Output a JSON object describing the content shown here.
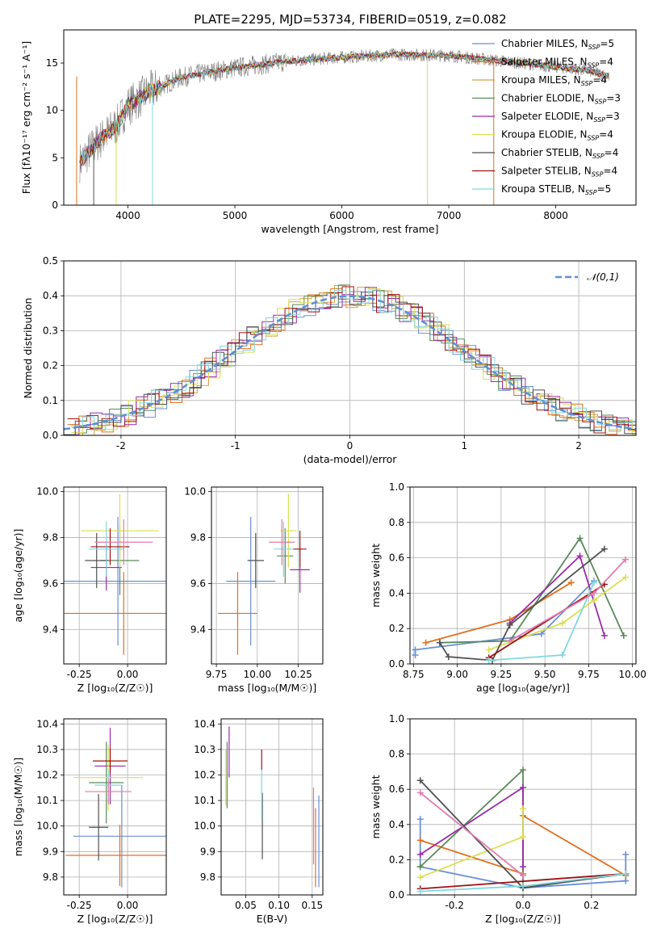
{
  "figure_title": "PLATE=2295, MJD=53734, FIBERID=0519, z=0.082",
  "colors": {
    "Chabrier MILES": "#6a8fd8",
    "Salpeter MILES": "#e07020",
    "Kroupa MILES": "#d8a040",
    "Chabrier ELODIE": "#5a8a5a",
    "Salpeter ELODIE": "#9a2aaa",
    "Kroupa ELODIE": "#d8e050",
    "Chabrier STELIB": "#505050",
    "Salpeter STELIB": "#a01010",
    "Kroupa STELIB": "#80d8e0",
    "pink": "#e07ab0",
    "gauss": "#5b8fd9"
  },
  "legend_spectrum": [
    {
      "label": "Chabrier MILES, N",
      "sub": "SSP",
      "val": "=5",
      "color": "#6a8fd8"
    },
    {
      "label": "Salpeter MILES, N",
      "sub": "SSP",
      "val": "=4",
      "color": "#e07020"
    },
    {
      "label": "Kroupa MILES, N",
      "sub": "SSP",
      "val": "=4",
      "color": "#d8a040"
    },
    {
      "label": "Chabrier ELODIE, N",
      "sub": "SSP",
      "val": "=3",
      "color": "#5a8a5a"
    },
    {
      "label": "Salpeter ELODIE, N",
      "sub": "SSP",
      "val": "=3",
      "color": "#9a2aaa"
    },
    {
      "label": "Kroupa ELODIE, N",
      "sub": "SSP",
      "val": "=4",
      "color": "#d8e050"
    },
    {
      "label": "Chabrier STELIB, N",
      "sub": "SSP",
      "val": "=4",
      "color": "#505050"
    },
    {
      "label": "Salpeter STELIB, N",
      "sub": "SSP",
      "val": "=4",
      "color": "#a01010"
    },
    {
      "label": "Kroupa STELIB, N",
      "sub": "SSP",
      "val": "=5",
      "color": "#80d8e0"
    }
  ],
  "chart_data": [
    {
      "id": "spectrum",
      "type": "line",
      "xlabel": "wavelength [Angstrom, rest frame]",
      "ylabel": "Flux [f",
      "ylabel_full": "Flux [fλ10⁻¹⁷ erg cm⁻² s⁻¹ A⁻¹]",
      "xlim": [
        3400,
        8750
      ],
      "ylim": [
        0,
        18.5
      ],
      "xticks": [
        4000,
        5000,
        6000,
        7000,
        8000
      ],
      "yticks": [
        0,
        5,
        10,
        15
      ],
      "continuum": [
        [
          3550,
          4.5
        ],
        [
          3700,
          6.5
        ],
        [
          3900,
          8.5
        ],
        [
          4000,
          10.5
        ],
        [
          4200,
          12
        ],
        [
          4500,
          13.5
        ],
        [
          5000,
          14.5
        ],
        [
          5500,
          15.2
        ],
        [
          6000,
          15.6
        ],
        [
          6500,
          15.9
        ],
        [
          7000,
          15.8
        ],
        [
          7500,
          15.2
        ],
        [
          8000,
          14.6
        ],
        [
          8300,
          14.2
        ],
        [
          8500,
          13.6
        ]
      ],
      "x_range": [
        3550,
        8500
      ]
    },
    {
      "id": "residuals",
      "type": "area",
      "xlabel": "(data-model)/error",
      "ylabel": "Normed distribution",
      "xlim": [
        -2.5,
        2.5
      ],
      "ylim": [
        0,
        0.5
      ],
      "xticks": [
        -2,
        -1,
        0,
        1,
        2
      ],
      "yticks": [
        0.0,
        0.1,
        0.2,
        0.3,
        0.4,
        0.5
      ],
      "legend": "𝒩(0,1)",
      "bin_width": 0.1
    },
    {
      "id": "age_vs_Z",
      "type": "scatter",
      "xlabel": "Z [log₁₀(Z/Z☉)]",
      "ylabel": "age  [log₁₀(age/yr)]",
      "xlim": [
        -0.33,
        0.2
      ],
      "ylim": [
        9.25,
        10.02
      ],
      "xticks": [
        -0.25,
        0.0
      ],
      "yticks": [
        9.4,
        9.6,
        9.8,
        10.0
      ],
      "points": [
        {
          "x": -0.05,
          "y": 9.61,
          "xerr": 0.28,
          "yerr": 0.28,
          "color": "#6a8fd8"
        },
        {
          "x": -0.02,
          "y": 9.47,
          "xerr": 0.32,
          "yerr": 0.18,
          "color": "#e07020"
        },
        {
          "x": -0.04,
          "y": 9.7,
          "xerr": 0.1,
          "yerr": 0.15,
          "color": "#5a8a5a"
        },
        {
          "x": -0.11,
          "y": 9.67,
          "xerr": 0.08,
          "yerr": 0.1,
          "color": "#9a2aaa"
        },
        {
          "x": -0.04,
          "y": 9.83,
          "xerr": 0.2,
          "yerr": 0.16,
          "color": "#d8e050"
        },
        {
          "x": -0.16,
          "y": 9.7,
          "xerr": 0.06,
          "yerr": 0.12,
          "color": "#505050"
        },
        {
          "x": -0.09,
          "y": 9.76,
          "xerr": 0.1,
          "yerr": 0.08,
          "color": "#a01010"
        },
        {
          "x": -0.11,
          "y": 9.75,
          "xerr": 0.09,
          "yerr": 0.12,
          "color": "#80d8e0"
        },
        {
          "x": -0.02,
          "y": 9.78,
          "xerr": 0.15,
          "yerr": 0.1,
          "color": "#e07ab0"
        }
      ]
    },
    {
      "id": "age_vs_mass",
      "type": "scatter",
      "xlabel": "mass [log₁₀(M/M☉)]",
      "ylabel": "",
      "xlim": [
        9.72,
        10.4
      ],
      "ylim": [
        9.25,
        10.02
      ],
      "xticks": [
        9.75,
        10.0,
        10.25
      ],
      "yticks": [
        9.4,
        9.6,
        9.8,
        10.0
      ],
      "points": [
        {
          "x": 9.96,
          "y": 9.61,
          "xerr": 0.15,
          "yerr": 0.28,
          "color": "#6a8fd8"
        },
        {
          "x": 9.88,
          "y": 9.47,
          "xerr": 0.12,
          "yerr": 0.18,
          "color": "#e07020"
        },
        {
          "x": 10.17,
          "y": 9.72,
          "xerr": 0.05,
          "yerr": 0.12,
          "color": "#5a8a5a"
        },
        {
          "x": 10.26,
          "y": 9.66,
          "xerr": 0.06,
          "yerr": 0.1,
          "color": "#9a2aaa"
        },
        {
          "x": 10.19,
          "y": 9.83,
          "xerr": 0.05,
          "yerr": 0.16,
          "color": "#d8e050"
        },
        {
          "x": 9.99,
          "y": 9.7,
          "xerr": 0.05,
          "yerr": 0.12,
          "color": "#505050"
        },
        {
          "x": 10.26,
          "y": 9.75,
          "xerr": 0.04,
          "yerr": 0.08,
          "color": "#a01010"
        },
        {
          "x": 10.16,
          "y": 9.75,
          "xerr": 0.06,
          "yerr": 0.12,
          "color": "#80d8e0"
        },
        {
          "x": 10.15,
          "y": 9.78,
          "xerr": 0.08,
          "yerr": 0.1,
          "color": "#e07ab0"
        }
      ]
    },
    {
      "id": "mass_weight_vs_age",
      "type": "line",
      "xlabel": "age  [log₁₀(age/yr)]",
      "ylabel": "mass weight",
      "xlim": [
        8.73,
        10.02
      ],
      "ylim": [
        0,
        1.0
      ],
      "xticks": [
        8.75,
        9.0,
        9.25,
        9.5,
        9.75,
        10.0
      ],
      "yticks": [
        0.0,
        0.2,
        0.4,
        0.6,
        0.8,
        1.0
      ],
      "series": [
        {
          "color": "#6a8fd8",
          "points": [
            [
              8.76,
              0.05
            ],
            [
              8.76,
              0.08
            ],
            [
              9.48,
              0.17
            ],
            [
              9.78,
              0.47
            ]
          ]
        },
        {
          "color": "#e07020",
          "points": [
            [
              8.82,
              0.12
            ],
            [
              9.3,
              0.25
            ],
            [
              9.65,
              0.46
            ]
          ]
        },
        {
          "color": "#5a8a5a",
          "points": [
            [
              8.9,
              0.12
            ],
            [
              9.3,
              0.13
            ],
            [
              9.7,
              0.71
            ],
            [
              9.95,
              0.16
            ]
          ]
        },
        {
          "color": "#9a2aaa",
          "points": [
            [
              9.3,
              0.23
            ],
            [
              9.7,
              0.61
            ],
            [
              9.84,
              0.16
            ]
          ]
        },
        {
          "color": "#d8e050",
          "points": [
            [
              9.18,
              0.08
            ],
            [
              9.6,
              0.23
            ],
            [
              9.78,
              0.36
            ],
            [
              9.96,
              0.49
            ]
          ]
        },
        {
          "color": "#505050",
          "points": [
            [
              8.9,
              0.12
            ],
            [
              8.95,
              0.04
            ],
            [
              9.2,
              0.02
            ],
            [
              9.3,
              0.22
            ],
            [
              9.84,
              0.65
            ]
          ]
        },
        {
          "color": "#a01010",
          "points": [
            [
              9.18,
              0.035
            ],
            [
              9.84,
              0.45
            ]
          ]
        },
        {
          "color": "#80d8e0",
          "points": [
            [
              9.18,
              0.02
            ],
            [
              9.6,
              0.05
            ],
            [
              9.78,
              0.46
            ]
          ]
        },
        {
          "color": "#e07ab0",
          "points": [
            [
              9.3,
              0.13
            ],
            [
              9.78,
              0.4
            ],
            [
              9.96,
              0.59
            ]
          ]
        }
      ]
    },
    {
      "id": "mass_vs_Z",
      "type": "scatter",
      "xlabel": "Z [log₁₀(Z/Z☉)]",
      "ylabel": "mass [log₁₀(M/M☉)]",
      "xlim": [
        -0.33,
        0.2
      ],
      "ylim": [
        9.73,
        10.42
      ],
      "xticks": [
        -0.25,
        0.0
      ],
      "yticks": [
        9.8,
        9.9,
        10.0,
        10.1,
        10.2,
        10.3,
        10.4
      ],
      "points": [
        {
          "x": -0.03,
          "y": 9.96,
          "xerr": 0.25,
          "yerr": 0.2,
          "color": "#6a8fd8"
        },
        {
          "x": -0.04,
          "y": 9.885,
          "xerr": 0.28,
          "yerr": 0.12,
          "color": "#e07020"
        },
        {
          "x": -0.11,
          "y": 10.17,
          "xerr": 0.09,
          "yerr": 0.16,
          "color": "#5a8a5a"
        },
        {
          "x": -0.09,
          "y": 10.235,
          "xerr": 0.08,
          "yerr": 0.15,
          "color": "#9a2aaa"
        },
        {
          "x": -0.1,
          "y": 10.19,
          "xerr": 0.18,
          "yerr": 0.13,
          "color": "#d8e050"
        },
        {
          "x": -0.15,
          "y": 9.995,
          "xerr": 0.05,
          "yerr": 0.13,
          "color": "#505050"
        },
        {
          "x": -0.09,
          "y": 10.255,
          "xerr": 0.09,
          "yerr": 0.05,
          "color": "#a01010"
        },
        {
          "x": -0.1,
          "y": 10.16,
          "xerr": 0.07,
          "yerr": 0.06,
          "color": "#80d8e0"
        },
        {
          "x": -0.1,
          "y": 10.135,
          "xerr": 0.12,
          "yerr": 0.05,
          "color": "#e07ab0"
        }
      ]
    },
    {
      "id": "mass_vs_ebv",
      "type": "scatter",
      "xlabel": "E(B-V)",
      "ylabel": "",
      "xlim": [
        0.013,
        0.166
      ],
      "ylim": [
        9.73,
        10.42
      ],
      "xticks": [
        0.05,
        0.1,
        0.15
      ],
      "yticks": [
        9.8,
        9.9,
        10.0,
        10.1,
        10.2,
        10.3,
        10.4
      ],
      "points": [
        {
          "x": 0.16,
          "y": 9.94,
          "yerr": 0.18,
          "color": "#6a8fd8"
        },
        {
          "x": 0.155,
          "y": 9.915,
          "yerr": 0.155,
          "color": "#e07020"
        },
        {
          "x": 0.022,
          "y": 10.2,
          "yerr": 0.13,
          "color": "#5a8a5a"
        },
        {
          "x": 0.025,
          "y": 10.29,
          "yerr": 0.1,
          "color": "#9a2aaa"
        },
        {
          "x": 0.02,
          "y": 10.19,
          "yerr": 0.11,
          "color": "#d8e050"
        },
        {
          "x": 0.075,
          "y": 10.0,
          "yerr": 0.13,
          "color": "#505050"
        },
        {
          "x": 0.074,
          "y": 10.26,
          "yerr": 0.04,
          "color": "#a01010"
        },
        {
          "x": 0.074,
          "y": 10.12,
          "yerr": 0.1,
          "color": "#80d8e0"
        },
        {
          "x": 0.152,
          "y": 10.0,
          "yerr": 0.15,
          "color": "#e07ab0"
        }
      ]
    },
    {
      "id": "mass_weight_vs_Z",
      "type": "line",
      "xlabel": "Z [log₁₀(Z/Z☉)]",
      "ylabel": "mass weight",
      "xlim": [
        -0.33,
        0.33
      ],
      "ylim": [
        0,
        1.0
      ],
      "xticks": [
        -0.2,
        0.0,
        0.2
      ],
      "yticks": [
        0.0,
        0.2,
        0.4,
        0.6,
        0.8,
        1.0
      ],
      "series": [
        {
          "color": "#6a8fd8",
          "points": [
            [
              -0.3,
              0.43
            ],
            [
              -0.3,
              0.16
            ],
            [
              0.0,
              0.04
            ],
            [
              0.3,
              0.08
            ],
            [
              0.3,
              0.23
            ]
          ]
        },
        {
          "color": "#e07020",
          "points": [
            [
              -0.3,
              0.31
            ],
            [
              0.0,
              0.12
            ],
            [
              0.0,
              0.45
            ],
            [
              0.3,
              0.11
            ]
          ]
        },
        {
          "color": "#5a8a5a",
          "points": [
            [
              -0.3,
              0.16
            ],
            [
              0.0,
              0.71
            ],
            [
              0.0,
              0.04
            ],
            [
              0.3,
              0.12
            ]
          ]
        },
        {
          "color": "#9a2aaa",
          "points": [
            [
              -0.3,
              0.23
            ],
            [
              0.0,
              0.61
            ],
            [
              0.0,
              0.16
            ]
          ]
        },
        {
          "color": "#d8e050",
          "points": [
            [
              -0.3,
              0.1
            ],
            [
              0.0,
              0.33
            ],
            [
              0.0,
              0.49
            ]
          ]
        },
        {
          "color": "#505050",
          "points": [
            [
              -0.3,
              0.65
            ],
            [
              0.0,
              0.04
            ],
            [
              0.3,
              0.12
            ]
          ]
        },
        {
          "color": "#a01010",
          "points": [
            [
              -0.3,
              0.035
            ],
            [
              0.3,
              0.12
            ]
          ]
        },
        {
          "color": "#80d8e0",
          "points": [
            [
              -0.3,
              0.02
            ],
            [
              0.0,
              0.05
            ],
            [
              0.3,
              0.12
            ]
          ]
        },
        {
          "color": "#e07ab0",
          "points": [
            [
              -0.3,
              0.58
            ],
            [
              0.0,
              0.11
            ]
          ]
        }
      ]
    }
  ]
}
